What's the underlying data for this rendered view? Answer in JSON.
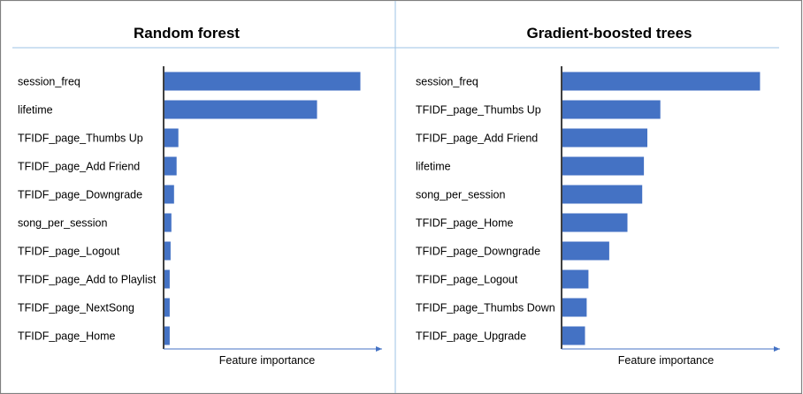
{
  "chart_data": [
    {
      "type": "bar",
      "orientation": "horizontal",
      "title": "Random forest",
      "xlabel": "Feature importance",
      "ylabel": "",
      "categories": [
        "session_freq",
        "lifetime",
        "TFIDF_page_Thumbs Up",
        "TFIDF_page_Add Friend",
        "TFIDF_page_Downgrade",
        "song_per_session",
        "TFIDF_page_Logout",
        "TFIDF_page_Add to Playlist",
        "TFIDF_page_NextSong",
        "TFIDF_page_Home"
      ],
      "values": [
        0.226,
        0.176,
        0.016,
        0.014,
        0.011,
        0.008,
        0.007,
        0.006,
        0.006,
        0.006
      ],
      "xlim": [
        0,
        0.25
      ],
      "color": "#4472C4",
      "grid": false
    },
    {
      "type": "bar",
      "orientation": "horizontal",
      "title": "Gradient-boosted trees",
      "xlabel": "Feature importance",
      "ylabel": "",
      "categories": [
        "session_freq",
        "TFIDF_page_Thumbs Up",
        "TFIDF_page_Add Friend",
        "lifetime",
        "song_per_session",
        "TFIDF_page_Home",
        "TFIDF_page_Downgrade",
        "TFIDF_page_Logout",
        "TFIDF_page_Thumbs Down",
        "TFIDF_page_Upgrade"
      ],
      "values": [
        0.228,
        0.113,
        0.098,
        0.094,
        0.092,
        0.075,
        0.054,
        0.03,
        0.028,
        0.026
      ],
      "xlim": [
        0,
        0.25
      ],
      "color": "#4472C4",
      "grid": false
    }
  ],
  "colors": {
    "bar": "#4472C4",
    "axis_arrow": "#4472C4",
    "divider": "#9DC3E6",
    "frame": "#808080",
    "axis_line": "#000000"
  }
}
